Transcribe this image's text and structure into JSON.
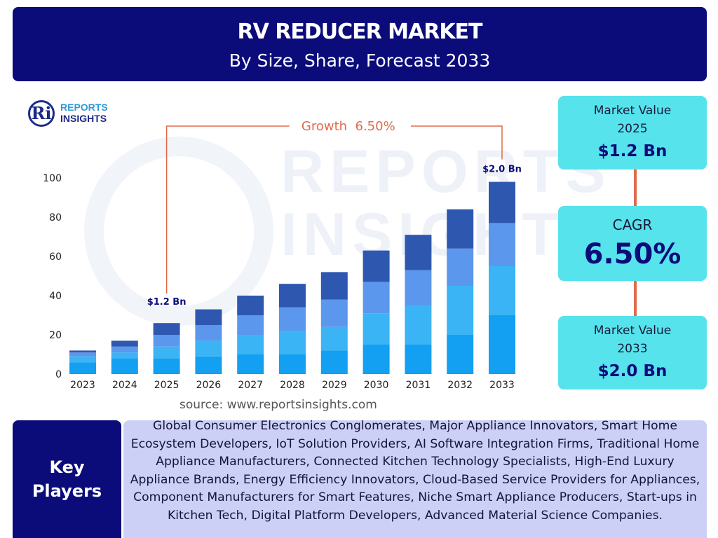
{
  "header": {
    "title": "RV REDUCER MARKET",
    "subtitle": "By Size, Share, Forecast 2033"
  },
  "logo": {
    "line1": "REPORTS",
    "line2": "INSIGHTS",
    "mark": "Ri"
  },
  "watermark": {
    "line1": "REPORTS",
    "line2": "INSIGHTS"
  },
  "chart_data": {
    "type": "bar",
    "stacked": true,
    "categories": [
      "2023",
      "2024",
      "2025",
      "2026",
      "2027",
      "2028",
      "2029",
      "2030",
      "2031",
      "2032",
      "2033"
    ],
    "series": [
      {
        "values": [
          6,
          8,
          8,
          9,
          10,
          10,
          12,
          15,
          15,
          20,
          30
        ]
      },
      {
        "values": [
          3,
          3,
          6,
          8,
          10,
          12,
          12,
          16,
          20,
          25,
          25
        ]
      },
      {
        "values": [
          2,
          3,
          6,
          8,
          10,
          12,
          14,
          16,
          18,
          19,
          22
        ]
      },
      {
        "values": [
          1,
          3,
          6,
          8,
          10,
          12,
          14,
          16,
          18,
          20,
          21
        ]
      }
    ],
    "colors": [
      "#139ff2",
      "#3ab4f5",
      "#5b97ec",
      "#2e58b0"
    ],
    "ylim": [
      0,
      100
    ],
    "yticks": [
      0,
      20,
      40,
      60,
      80,
      100
    ],
    "grid": false,
    "annotations": {
      "growth_label": "Growth  6.50%",
      "start_label": "$1.2 Bn",
      "start_category": "2025",
      "end_label": "$2.0 Bn",
      "end_category": "2033",
      "line_color": "#e06a4a"
    }
  },
  "source": "source: www.reportsinsights.com",
  "side_panel": {
    "market_value_2025": {
      "label": "Market Value\n2025",
      "value": "$1.2 Bn"
    },
    "cagr": {
      "label": "CAGR",
      "value": "6.50%"
    },
    "market_value_2033": {
      "label": "Market Value\n2033",
      "value": "$2.0 Bn"
    }
  },
  "key_players": {
    "label": "Key\nPlayers",
    "text": "Global Consumer Electronics Conglomerates, Major Appliance Innovators, Smart Home Ecosystem Developers, IoT Solution Providers, AI Software Integration Firms, Traditional Home Appliance Manufacturers, Connected Kitchen Technology Specialists, High-End Luxury Appliance Brands, Energy Efficiency Innovators, Cloud-Based Service Providers for Appliances, Component Manufacturers for Smart Features, Niche Smart Appliance Producers, Start-ups in Kitchen Tech, Digital Platform Developers, Advanced Material Science Companies."
  }
}
